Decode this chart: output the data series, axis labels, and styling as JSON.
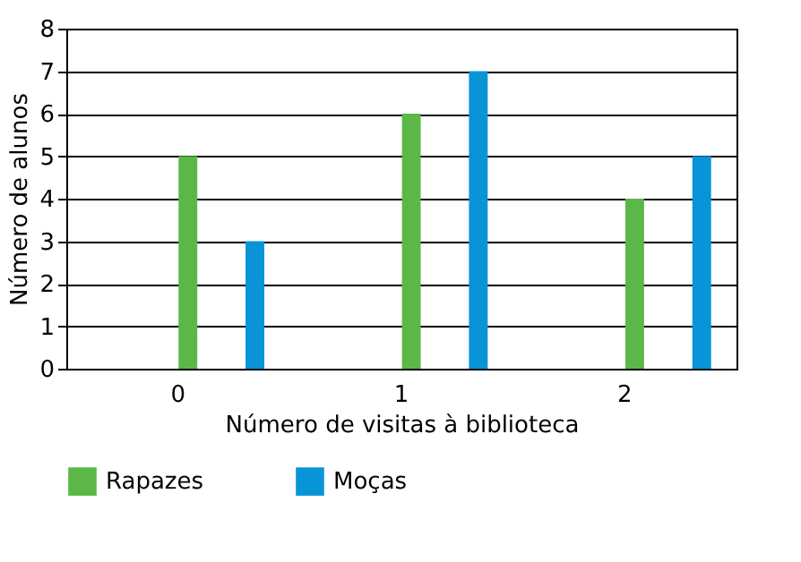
{
  "chart_data": {
    "type": "bar",
    "xlabel": "Número de visitas à biblioteca",
    "ylabel": "Número de alunos",
    "categories": [
      "0",
      "1",
      "2"
    ],
    "series": [
      {
        "name": "Rapazes",
        "color": "#5bb848",
        "values": [
          5,
          6,
          4
        ]
      },
      {
        "name": "Moças",
        "color": "#0994d8",
        "values": [
          3,
          7,
          5
        ]
      }
    ],
    "ylim": [
      0,
      8
    ],
    "yticks": [
      0,
      1,
      2,
      3,
      4,
      5,
      6,
      7,
      8
    ],
    "grid": "y",
    "legend": "bottom"
  }
}
